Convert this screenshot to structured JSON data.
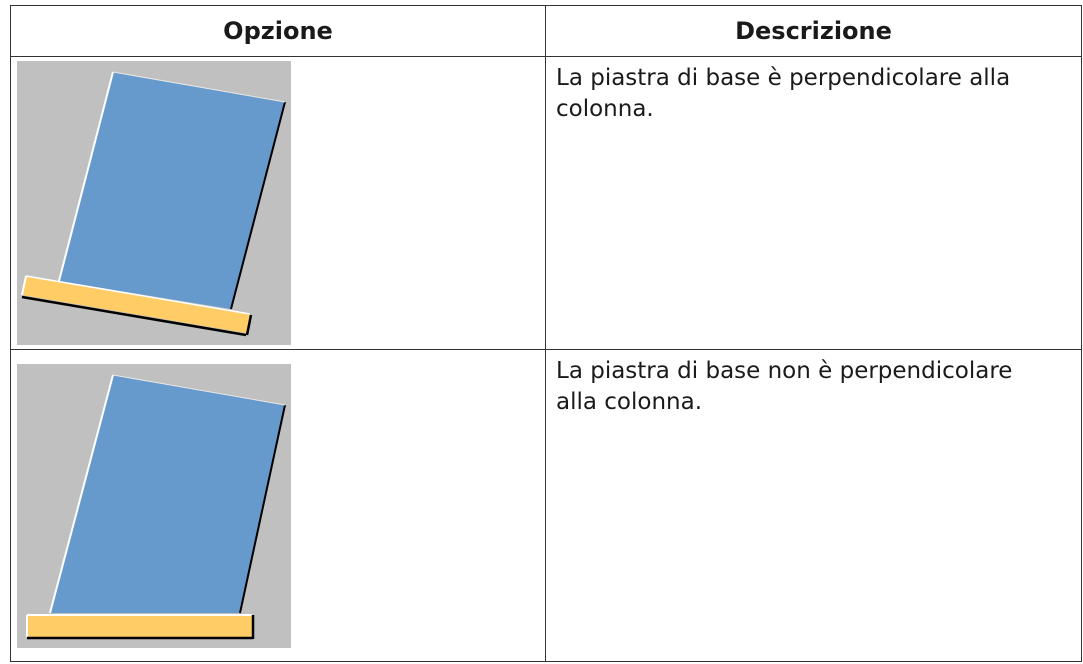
{
  "table": {
    "header": [
      "Opzione",
      "Descrizione"
    ],
    "rows": [
      {
        "description": "La piastra di base è perpendicolare alla colonna."
      },
      {
        "description": "La piastra di base non è perpendicolare alla colonna."
      }
    ]
  }
}
